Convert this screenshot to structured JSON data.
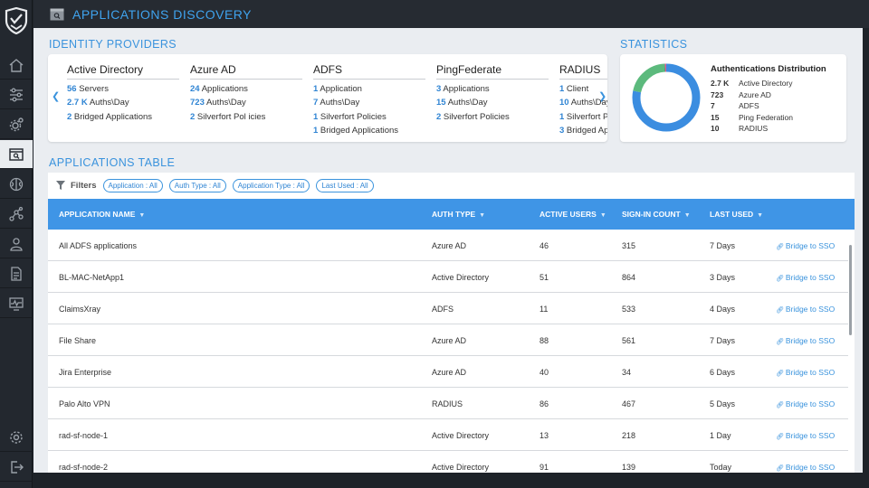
{
  "header": {
    "title": "APPLICATIONS DISCOVERY"
  },
  "sidebar": {
    "items": [
      {
        "name": "home",
        "icon": "home-icon"
      },
      {
        "name": "policies",
        "icon": "sliders-icon"
      },
      {
        "name": "settings-cog",
        "icon": "cogs-icon"
      },
      {
        "name": "applications-discovery",
        "icon": "search-window-icon",
        "active": true
      },
      {
        "name": "brain",
        "icon": "brain-icon"
      },
      {
        "name": "graph",
        "icon": "graph-icon"
      },
      {
        "name": "users",
        "icon": "user-icon"
      },
      {
        "name": "reports",
        "icon": "document-icon"
      },
      {
        "name": "monitor",
        "icon": "monitor-icon"
      },
      {
        "name": "settings",
        "icon": "gear-icon"
      },
      {
        "name": "logout",
        "icon": "logout-icon"
      }
    ]
  },
  "identity_providers": {
    "title": "IDENTITY PROVIDERS",
    "providers": [
      {
        "name": "Active Directory",
        "stats": [
          {
            "value": "56",
            "label": " Servers"
          },
          {
            "value": "2.7 K",
            "label": " Auths\\Day"
          },
          {
            "value": "2",
            "label": " Bridged Applications"
          }
        ]
      },
      {
        "name": "Azure AD",
        "stats": [
          {
            "value": "24",
            "label": " Applications"
          },
          {
            "value": "723",
            "label": " Auths\\Day"
          },
          {
            "value": "2",
            "label": " Silverfort Pol icies"
          }
        ]
      },
      {
        "name": "ADFS",
        "stats": [
          {
            "value": "1",
            "label": " Application"
          },
          {
            "value": "7",
            "label": " Auths\\Day"
          },
          {
            "value": "1",
            "label": " Silverfort Policies"
          },
          {
            "value": "1",
            "label": " Bridged Applications"
          }
        ]
      },
      {
        "name": "PingFederate",
        "stats": [
          {
            "value": "3",
            "label": " Applications"
          },
          {
            "value": "15",
            "label": " Auths\\Day"
          },
          {
            "value": "2",
            "label": " Silverfort Policies"
          }
        ]
      },
      {
        "name": "RADIUS",
        "stats": [
          {
            "value": "1",
            "label": " Client"
          },
          {
            "value": "10",
            "label": " Auths\\Day"
          },
          {
            "value": "1",
            "label": " Silverfort Policies"
          },
          {
            "value": "3",
            "label": " Bridged Applications"
          }
        ]
      }
    ]
  },
  "statistics": {
    "title": "STATISTICS",
    "chart_title": "Authentications Distribution",
    "items": [
      {
        "value": "2.7 K",
        "label": "Active Directory",
        "color": "#3b8de0",
        "amount": 2700
      },
      {
        "value": "723",
        "label": "Azure AD",
        "color": "#5cba7d",
        "amount": 723
      },
      {
        "value": "7",
        "label": "ADFS",
        "color": "#444444",
        "amount": 7
      },
      {
        "value": "15",
        "label": "Ping Federation",
        "color": "#d24fa0",
        "amount": 15
      },
      {
        "value": "10",
        "label": "RADIUS",
        "color": "#e23a3a",
        "amount": 10
      }
    ]
  },
  "applications_table": {
    "title": "APPLICATIONS TABLE",
    "filters_label": "Filters",
    "filters": [
      "Application : All",
      "Auth Type : All",
      "Application Type : All",
      "Last Used : All"
    ],
    "columns": [
      "APPLICATION NAME",
      "AUTH TYPE",
      "ACTIVE USERS",
      "SIGN-IN COUNT",
      "LAST USED"
    ],
    "rows": [
      {
        "name": "All ADFS applications",
        "auth_type": "Azure AD",
        "active_users": "46",
        "sign_in_count": "315",
        "last_used": "7 Days",
        "action": "Bridge to SSO"
      },
      {
        "name": "BL-MAC-NetApp1",
        "auth_type": "Active Directory",
        "active_users": "51",
        "sign_in_count": "864",
        "last_used": "3 Days",
        "action": "Bridge to SSO"
      },
      {
        "name": "ClaimsXray",
        "auth_type": "ADFS",
        "active_users": "11",
        "sign_in_count": "533",
        "last_used": "4 Days",
        "action": "Bridge to SSO"
      },
      {
        "name": "File Share",
        "auth_type": "Azure AD",
        "active_users": "88",
        "sign_in_count": "561",
        "last_used": "7 Days",
        "action": "Bridge to SSO"
      },
      {
        "name": "Jira Enterprise",
        "auth_type": "Azure AD",
        "active_users": "40",
        "sign_in_count": "34",
        "last_used": "6 Days",
        "action": "Bridge to SSO"
      },
      {
        "name": "Palo Alto VPN",
        "auth_type": "RADIUS",
        "active_users": "86",
        "sign_in_count": "467",
        "last_used": "5 Days",
        "action": "Bridge to SSO"
      },
      {
        "name": "rad-sf-node-1",
        "auth_type": "Active Directory",
        "active_users": "13",
        "sign_in_count": "218",
        "last_used": "1 Day",
        "action": "Bridge to SSO"
      },
      {
        "name": "rad-sf-node-2",
        "auth_type": "Active Directory",
        "active_users": "91",
        "sign_in_count": "139",
        "last_used": "Today",
        "action": "Bridge to SSO"
      }
    ]
  }
}
